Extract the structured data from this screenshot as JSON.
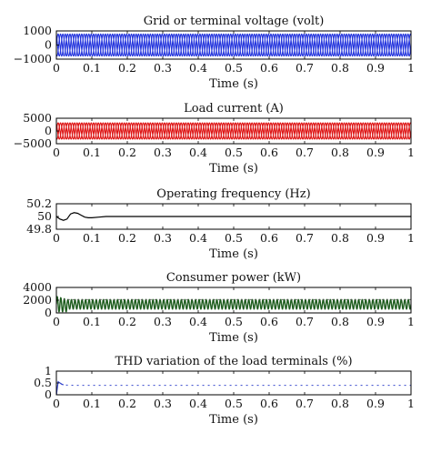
{
  "chart_data": [
    {
      "type": "line",
      "title": "Grid or terminal voltage (volt)",
      "xlabel": "Time (s)",
      "ylabel": "",
      "xlim": [
        0,
        1
      ],
      "ylim": [
        -1000,
        1000
      ],
      "xticks": [
        "0",
        "0.1",
        "0.2",
        "0.3",
        "0.4",
        "0.5",
        "0.6",
        "0.7",
        "0.8",
        "0.9",
        "1"
      ],
      "yticks": [
        "1000",
        "0",
        "−1000"
      ],
      "yticks_values": [
        1000,
        0,
        -1000
      ],
      "series": [
        {
          "color": "#2233dd",
          "waveform": "three-phase sinusoid",
          "amplitude": 780,
          "frequency_hz": 50
        }
      ]
    },
    {
      "type": "line",
      "title": "Load current (A)",
      "xlabel": "Time (s)",
      "ylabel": "",
      "xlim": [
        0,
        1
      ],
      "ylim": [
        -5000,
        5000
      ],
      "xticks": [
        "0",
        "0.1",
        "0.2",
        "0.3",
        "0.4",
        "0.5",
        "0.6",
        "0.7",
        "0.8",
        "0.9",
        "1"
      ],
      "yticks": [
        "5000",
        "0",
        "−5000"
      ],
      "yticks_values": [
        5000,
        0,
        -5000
      ],
      "series": [
        {
          "color": "#dd1111",
          "waveform": "three-phase sinusoid",
          "amplitude": 3200,
          "frequency_hz": 50
        }
      ]
    },
    {
      "type": "line",
      "title": "Operating frequency (Hz)",
      "xlabel": "Time (s)",
      "ylabel": "",
      "xlim": [
        0,
        1
      ],
      "ylim": [
        49.8,
        50.2
      ],
      "xticks": [
        "0",
        "0.1",
        "0.2",
        "0.3",
        "0.4",
        "0.5",
        "0.6",
        "0.7",
        "0.8",
        "0.9",
        "1"
      ],
      "yticks": [
        "50.2",
        "50",
        "49.8"
      ],
      "yticks_values": [
        50.2,
        50,
        49.8
      ],
      "series": [
        {
          "color": "#000000",
          "x": [
            0,
            0.01,
            0.02,
            0.03,
            0.04,
            0.05,
            0.06,
            0.07,
            0.08,
            0.09,
            0.1,
            0.12,
            0.14,
            0.16,
            0.2,
            0.3,
            0.4,
            0.5,
            0.6,
            0.7,
            0.8,
            0.9,
            1.0
          ],
          "y": [
            50.0,
            49.96,
            49.94,
            49.96,
            50.04,
            50.06,
            50.05,
            50.02,
            49.99,
            49.98,
            49.98,
            49.99,
            50.0,
            50.0,
            50.0,
            50.0,
            50.0,
            50.0,
            50.0,
            50.0,
            50.0,
            50.0,
            50.0
          ]
        }
      ]
    },
    {
      "type": "area",
      "title": "Consumer power (kW)",
      "xlabel": "Time (s)",
      "ylabel": "",
      "xlim": [
        0,
        1
      ],
      "ylim": [
        0,
        4000
      ],
      "xticks": [
        "0",
        "0.1",
        "0.2",
        "0.3",
        "0.4",
        "0.5",
        "0.6",
        "0.7",
        "0.8",
        "0.9",
        "1"
      ],
      "yticks": [
        "4000",
        "2000",
        "0"
      ],
      "yticks_values": [
        4000,
        2000,
        0
      ],
      "series": [
        {
          "color": "#1d5c1d",
          "waveform": "oscillating power band",
          "min": 600,
          "max": 2100,
          "startup_peak": 2600
        }
      ]
    },
    {
      "type": "line",
      "title": "THD variation of the load terminals (%)",
      "xlabel": "Time (s)",
      "ylabel": "",
      "xlim": [
        0,
        1
      ],
      "ylim": [
        0,
        1
      ],
      "xticks": [
        "0",
        "0.1",
        "0.2",
        "0.3",
        "0.4",
        "0.5",
        "0.6",
        "0.7",
        "0.8",
        "0.9",
        "1"
      ],
      "yticks": [
        "1",
        "0.5",
        "0"
      ],
      "yticks_values": [
        1,
        0.5,
        0
      ],
      "series": [
        {
          "color": "#3344cc",
          "x": [
            0,
            0.005,
            0.01,
            0.015,
            0.02,
            0.03,
            0.05,
            0.1,
            0.2,
            0.3,
            0.4,
            0.5,
            0.6,
            0.7,
            0.8,
            0.9,
            1.0
          ],
          "y": [
            0.0,
            0.55,
            0.5,
            0.45,
            0.42,
            0.41,
            0.4,
            0.4,
            0.4,
            0.4,
            0.4,
            0.4,
            0.4,
            0.4,
            0.4,
            0.4,
            0.4
          ]
        }
      ]
    }
  ]
}
